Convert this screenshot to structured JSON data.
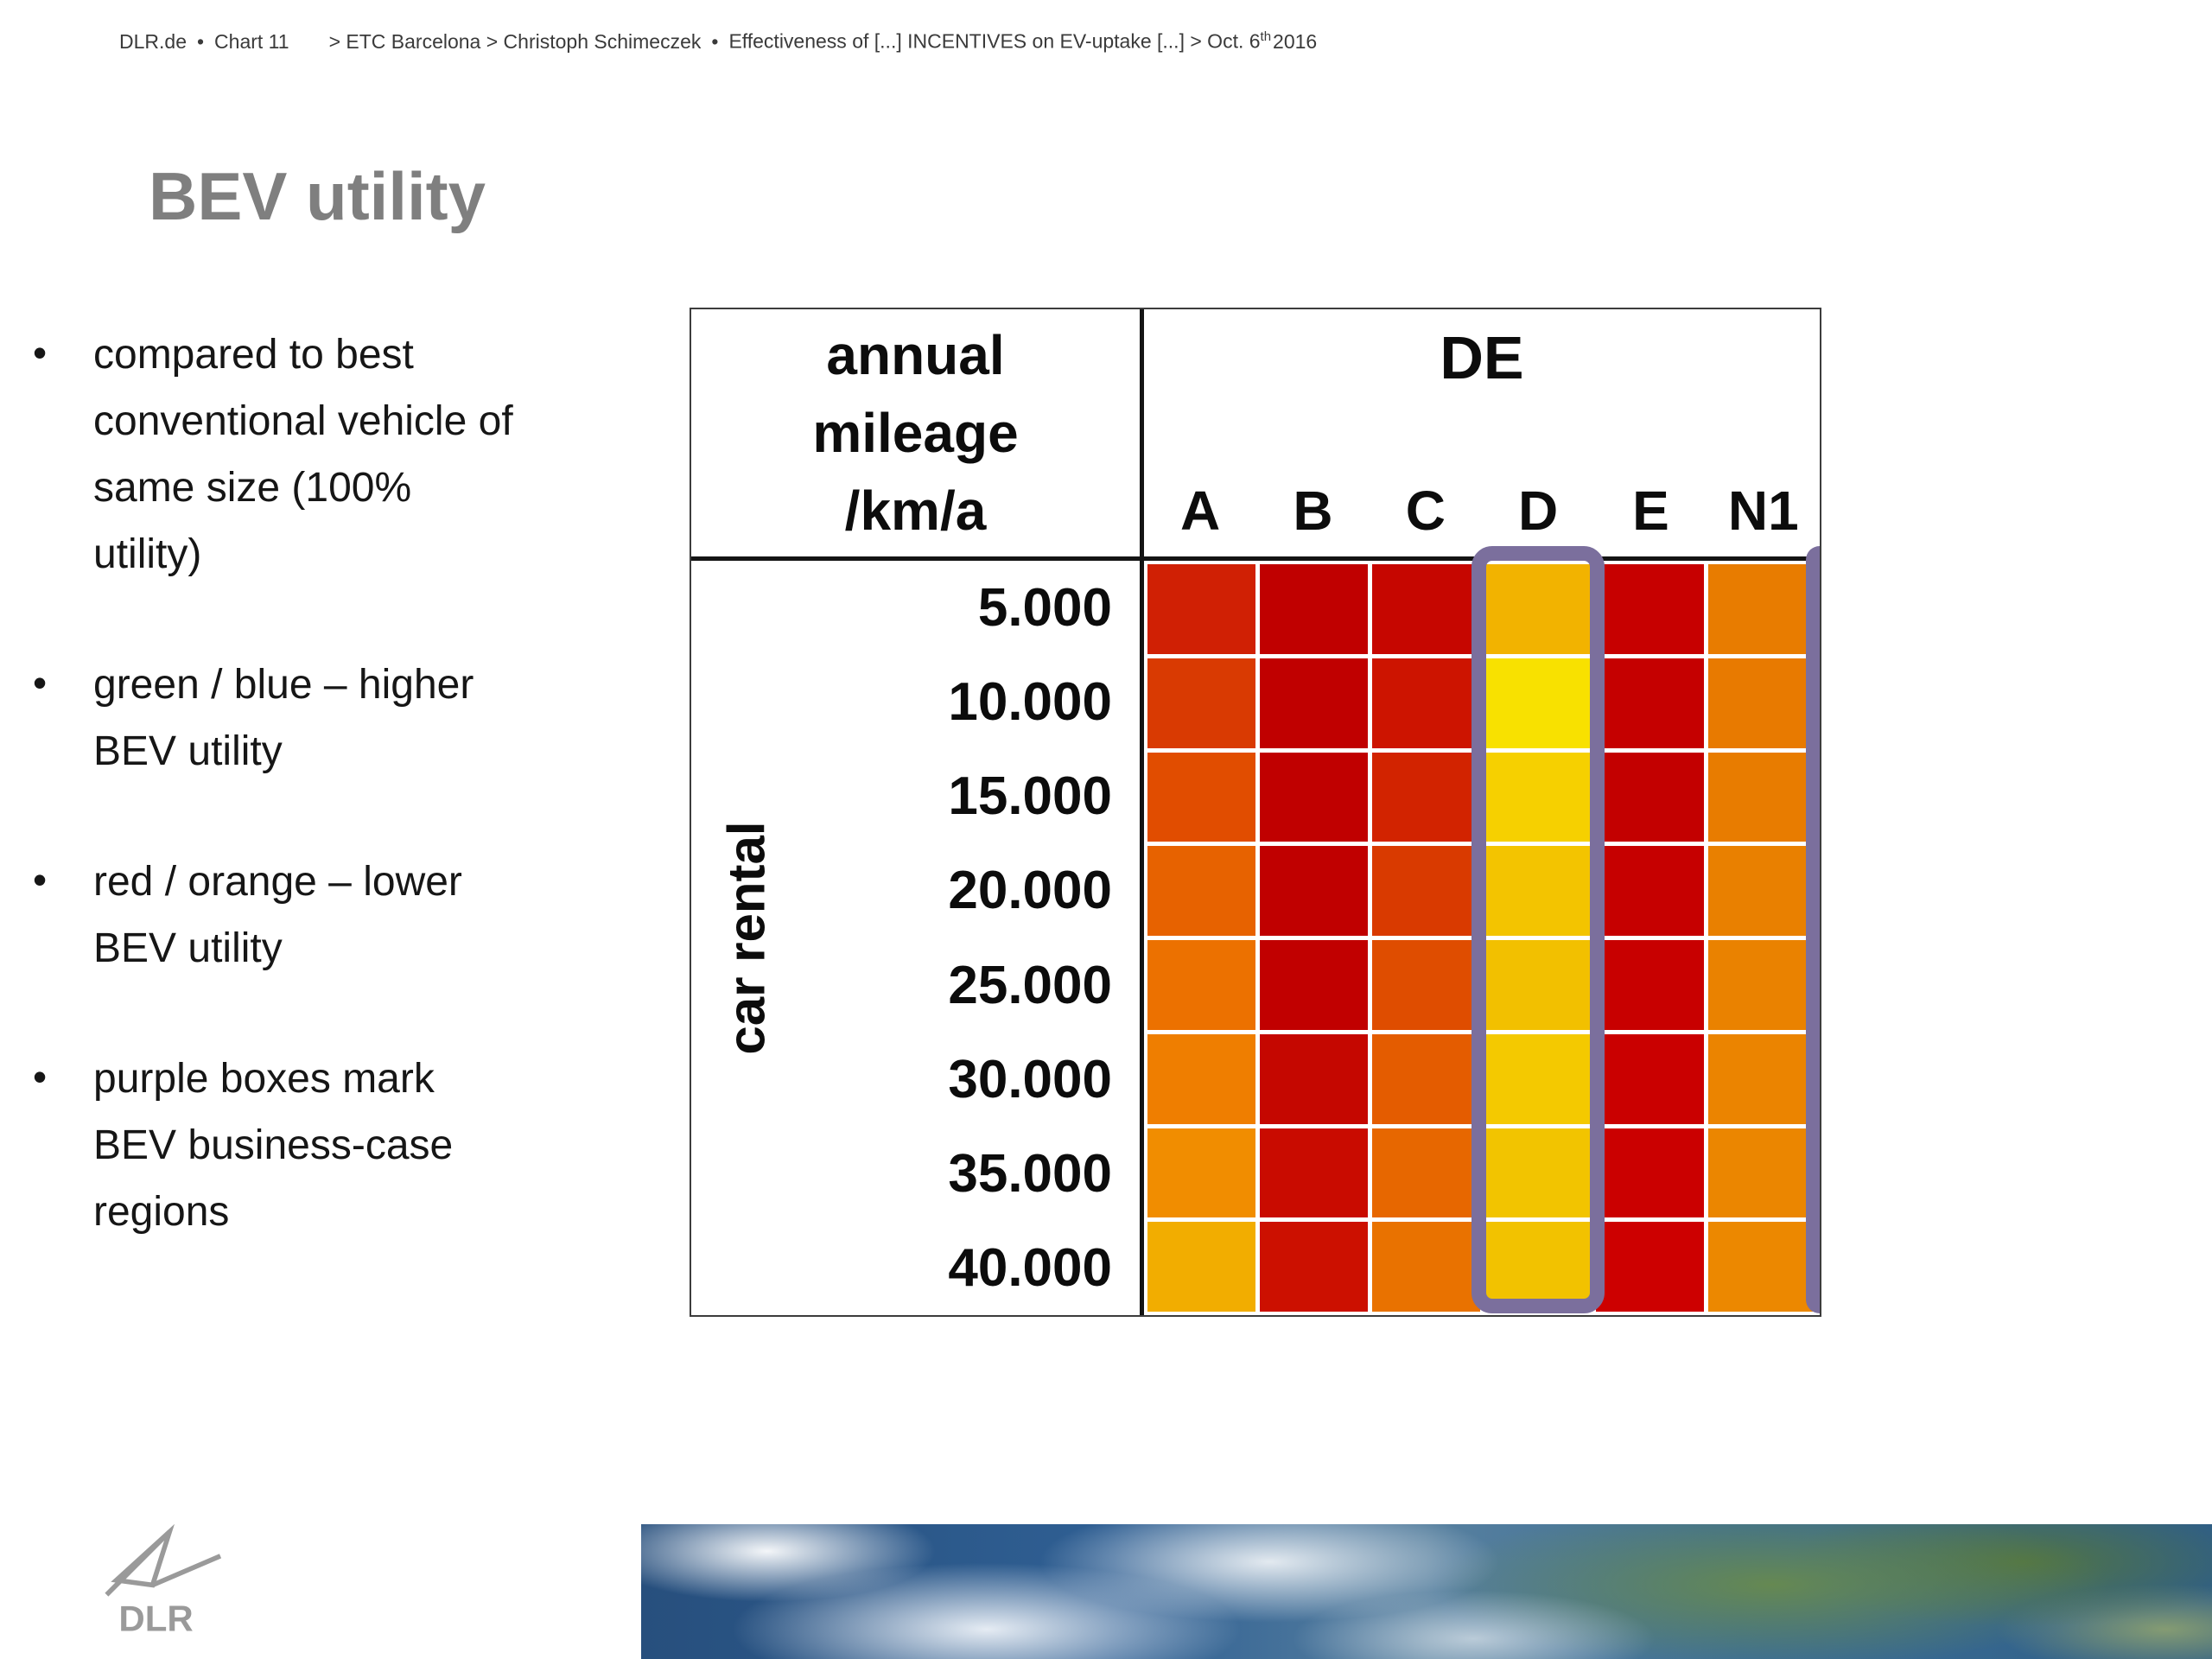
{
  "meta_header": {
    "parts": [
      "DLR.de",
      "•",
      "Chart 11",
      "> ETC Barcelona > Christoph Schimeczek",
      "•",
      "Effectiveness of [...] INCENTIVES on EV-uptake [...] > Oct. 6"
    ],
    "superscript": "th",
    "suffix": "2016"
  },
  "slide": {
    "title": "BEV utility",
    "bullets": [
      "compared to best conventional vehicle of same size (100% utility)",
      "green / blue – higher BEV utility",
      "red / orange – lower BEV utility",
      "purple boxes mark BEV business-case regions"
    ]
  },
  "chart_data": {
    "type": "heatmap",
    "corner_header_lines": [
      "annual",
      "mileage",
      "/km/a"
    ],
    "group_header": "DE",
    "row_group_label": "car rental",
    "columns": [
      "A",
      "B",
      "C",
      "D",
      "E",
      "N1"
    ],
    "rows": [
      "5.000",
      "10.000",
      "15.000",
      "20.000",
      "25.000",
      "30.000",
      "35.000",
      "40.000"
    ],
    "highlight_color": "#7b6f9d",
    "highlighted_columns": [
      "D"
    ],
    "partial_highlight_at_right_edge": true,
    "cell_colors": [
      [
        "#d02004",
        "#c00000",
        "#c60600",
        "#f2b300",
        "#c70000",
        "#e87c00"
      ],
      [
        "#d93a02",
        "#c00000",
        "#cd1400",
        "#f8e100",
        "#c50000",
        "#e87a00"
      ],
      [
        "#e14d00",
        "#c00000",
        "#d22300",
        "#f6d000",
        "#c30000",
        "#e87c00"
      ],
      [
        "#e76200",
        "#c00000",
        "#d93a00",
        "#f3c400",
        "#c60000",
        "#e98000"
      ],
      [
        "#ec7100",
        "#c10000",
        "#df4d00",
        "#f2c000",
        "#c80000",
        "#ea8200"
      ],
      [
        "#ef7e00",
        "#c50700",
        "#e45c00",
        "#f4c900",
        "#ca0000",
        "#eb8400"
      ],
      [
        "#f18d00",
        "#c90b00",
        "#e76700",
        "#f2c400",
        "#cb0000",
        "#eb8600"
      ],
      [
        "#f2ad00",
        "#cc1000",
        "#e97200",
        "#f2c200",
        "#cd0000",
        "#ec8800"
      ]
    ]
  },
  "logo": {
    "label": "DLR"
  },
  "footer_image": {
    "name": "earth-satellite-photo"
  }
}
